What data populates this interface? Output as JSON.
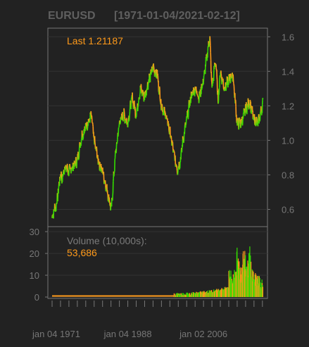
{
  "chart_data": {
    "type": "line",
    "symbol": "EURUSD",
    "range_label": "[1971-01-04/2021-02-12]",
    "last_label": "Last 1.21187",
    "colors": {
      "up": "#33dd00",
      "down": "#ff9a1a",
      "grid": "#333333",
      "axis": "#777777",
      "frame": "#777777"
    },
    "price": {
      "ylim": [
        0.5,
        1.65
      ],
      "yticks": [
        0.6,
        0.8,
        1.0,
        1.2,
        1.4,
        1.6
      ],
      "ytick_labels": [
        "0.6",
        "0.8",
        "1.0",
        "1.2",
        "1.4",
        "1.6"
      ],
      "x": [
        1971.0,
        1971.5,
        1972.0,
        1973.0,
        1973.5,
        1974.0,
        1975.0,
        1976.0,
        1977.0,
        1978.0,
        1979.0,
        1980.0,
        1980.3,
        1981.0,
        1982.0,
        1983.0,
        1984.0,
        1985.1,
        1986.0,
        1987.0,
        1988.0,
        1989.0,
        1990.0,
        1991.0,
        1992.0,
        1993.0,
        1994.0,
        1995.0,
        1996.0,
        1997.0,
        1998.0,
        1999.0,
        2000.0,
        2000.8,
        2001.5,
        2002.0,
        2003.0,
        2004.0,
        2005.0,
        2006.0,
        2007.0,
        2008.5,
        2009.0,
        2009.9,
        2010.5,
        2011.0,
        2012.0,
        2013.0,
        2014.0,
        2015.0,
        2016.0,
        2017.0,
        2018.0,
        2019.0,
        2020.0,
        2021.1
      ],
      "y": [
        0.55,
        0.6,
        0.62,
        0.8,
        0.78,
        0.85,
        0.82,
        0.85,
        0.88,
        1.02,
        1.08,
        1.12,
        1.15,
        1.0,
        0.88,
        0.82,
        0.72,
        0.6,
        0.9,
        1.1,
        1.15,
        1.1,
        1.25,
        1.15,
        1.3,
        1.25,
        1.35,
        1.42,
        1.38,
        1.2,
        1.15,
        1.05,
        0.92,
        0.83,
        0.88,
        0.98,
        1.12,
        1.25,
        1.3,
        1.25,
        1.35,
        1.6,
        1.3,
        1.47,
        1.22,
        1.4,
        1.3,
        1.35,
        1.38,
        1.1,
        1.1,
        1.18,
        1.22,
        1.12,
        1.1,
        1.21
      ]
    },
    "volume": {
      "label": "Volume (10,000s):",
      "value_label": "53,686",
      "ylim": [
        0,
        31
      ],
      "yticks": [
        0,
        10,
        20,
        30
      ],
      "ytick_labels": [
        "0",
        "10",
        "20",
        "30"
      ],
      "x": [
        2013.0,
        2013.5,
        2014.0,
        2014.5,
        2015.0,
        2015.5,
        2016.0,
        2016.5,
        2017.0,
        2017.5,
        2018.0,
        2018.5,
        2019.0,
        2019.5,
        2020.0,
        2020.5,
        2021.0
      ],
      "y": [
        18,
        12,
        10,
        15,
        22,
        16,
        14,
        30,
        20,
        16,
        24,
        14,
        12,
        10,
        12,
        9,
        8
      ],
      "base_level": 0.5
    },
    "x_range": [
      1971.0,
      2021.2
    ],
    "date_labels": [
      {
        "label": "jan 04 1971",
        "x": 1971.0
      },
      {
        "label": "jan 04 1988",
        "x": 1988.0
      },
      {
        "label": "jan 02 2006",
        "x": 2006.0
      }
    ],
    "grid": true
  }
}
